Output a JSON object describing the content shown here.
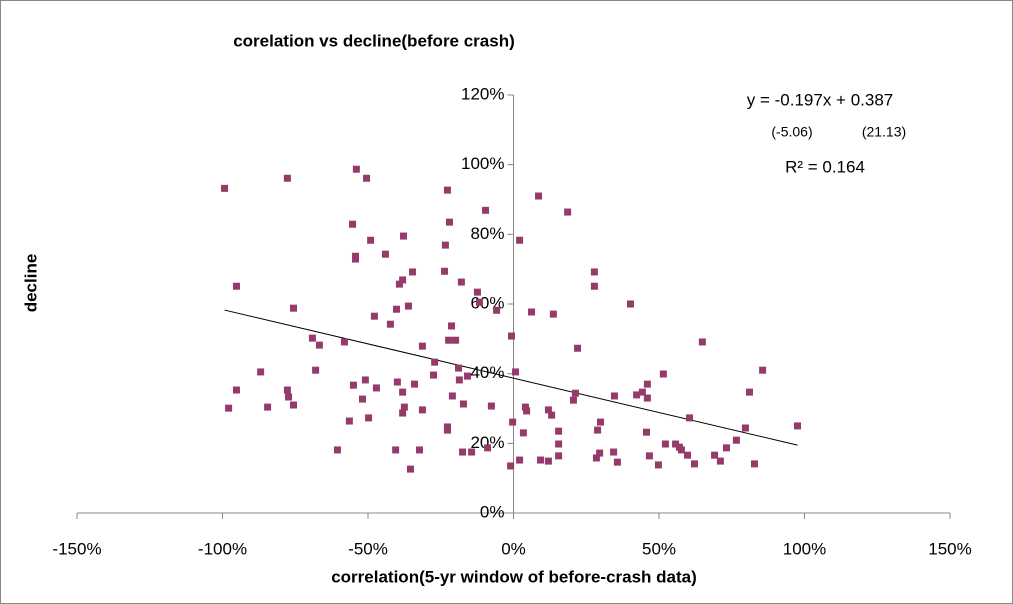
{
  "chart_data": {
    "type": "scatter",
    "title": "corelation vs decline(before crash)",
    "x_label": "correlation(5-yr window of before-crash  data)",
    "y_label": "decline",
    "annotations": [
      "y = -0.197x + 0.387",
      "(-5.06)",
      "(21.13)",
      "R² = 0.164"
    ],
    "trendline": {
      "slope": -0.197,
      "intercept": 0.387
    },
    "color": "#953a6a",
    "grid": false,
    "xlim": [
      -1.5,
      1.5
    ],
    "xticks": [
      {
        "value": -1.5,
        "label": "-150%"
      },
      {
        "value": -1,
        "label": "-100%"
      },
      {
        "value": -0.5,
        "label": "-50%"
      },
      {
        "value": 0,
        "label": "0%"
      },
      {
        "value": 0.5,
        "label": "50%"
      },
      {
        "value": 1,
        "label": "100%"
      },
      {
        "value": 1.5,
        "label": "150%"
      }
    ],
    "ylim": [
      0,
      1.2
    ],
    "yticks": [
      {
        "value": 0,
        "label": "0%"
      },
      {
        "value": 0.2,
        "label": "20%"
      },
      {
        "value": 0.4,
        "label": "40%"
      },
      {
        "value": 0.6,
        "label": "60%"
      },
      {
        "value": 0.8,
        "label": "80%"
      },
      {
        "value": 1,
        "label": "100%"
      },
      {
        "value": 1.2,
        "label": "120%"
      }
    ],
    "x": [
      -0.993,
      -0.952,
      -0.979,
      -0.952,
      -0.845,
      -0.869,
      -0.777,
      -0.756,
      -0.777,
      -0.773,
      -0.756,
      -0.691,
      -0.667,
      -0.68,
      -0.605,
      -0.581,
      -0.564,
      -0.553,
      -0.543,
      -0.543,
      -0.54,
      -0.55,
      -0.505,
      -0.519,
      -0.509,
      -0.498,
      -0.491,
      -0.478,
      -0.471,
      -0.44,
      -0.423,
      -0.405,
      -0.399,
      -0.402,
      -0.392,
      -0.381,
      -0.378,
      -0.381,
      -0.381,
      -0.375,
      -0.361,
      -0.354,
      -0.347,
      -0.34,
      -0.323,
      -0.313,
      -0.313,
      -0.271,
      -0.275,
      -0.237,
      -0.234,
      -0.227,
      -0.227,
      -0.227,
      -0.223,
      -0.22,
      -0.213,
      -0.21,
      -0.199,
      -0.189,
      -0.186,
      -0.179,
      -0.175,
      -0.172,
      -0.158,
      -0.144,
      -0.124,
      -0.117,
      -0.096,
      -0.089,
      -0.076,
      -0.058,
      -0.01,
      -0.007,
      -0.003,
      0.007,
      0.021,
      0.021,
      0.034,
      0.041,
      0.045,
      0.062,
      0.086,
      0.093,
      0.12,
      0.12,
      0.131,
      0.137,
      0.155,
      0.155,
      0.155,
      0.186,
      0.206,
      0.213,
      0.22,
      0.278,
      0.278,
      0.285,
      0.289,
      0.299,
      0.296,
      0.344,
      0.347,
      0.357,
      0.402,
      0.423,
      0.443,
      0.46,
      0.46,
      0.457,
      0.467,
      0.498,
      0.515,
      0.522,
      0.557,
      0.57,
      0.577,
      0.598,
      0.605,
      0.622,
      0.649,
      0.691,
      0.711,
      0.732,
      0.766,
      0.797,
      0.811,
      0.828,
      0.856,
      0.976
    ],
    "values": [
      0.932,
      0.651,
      0.301,
      0.353,
      0.304,
      0.405,
      0.961,
      0.588,
      0.353,
      0.333,
      0.31,
      0.502,
      0.482,
      0.41,
      0.181,
      0.491,
      0.264,
      0.829,
      0.737,
      0.729,
      0.987,
      0.367,
      0.961,
      0.327,
      0.382,
      0.273,
      0.783,
      0.565,
      0.359,
      0.743,
      0.542,
      0.181,
      0.376,
      0.585,
      0.657,
      0.287,
      0.795,
      0.669,
      0.347,
      0.304,
      0.594,
      0.126,
      0.692,
      0.37,
      0.181,
      0.296,
      0.479,
      0.433,
      0.396,
      0.694,
      0.769,
      0.927,
      0.247,
      0.238,
      0.496,
      0.835,
      0.537,
      0.336,
      0.496,
      0.416,
      0.382,
      0.663,
      0.175,
      0.313,
      0.393,
      0.175,
      0.634,
      0.605,
      0.869,
      0.187,
      0.307,
      0.582,
      0.135,
      0.508,
      0.261,
      0.405,
      0.783,
      0.152,
      0.23,
      0.304,
      0.293,
      0.577,
      0.91,
      0.152,
      0.149,
      0.296,
      0.281,
      0.571,
      0.235,
      0.198,
      0.164,
      0.864,
      0.324,
      0.344,
      0.473,
      0.692,
      0.651,
      0.158,
      0.238,
      0.261,
      0.172,
      0.175,
      0.336,
      0.146,
      0.6,
      0.339,
      0.347,
      0.33,
      0.37,
      0.232,
      0.164,
      0.138,
      0.399,
      0.198,
      0.198,
      0.189,
      0.181,
      0.166,
      0.273,
      0.141,
      0.491,
      0.166,
      0.149,
      0.187,
      0.209,
      0.244,
      0.347,
      0.141,
      0.41,
      0.25
    ]
  }
}
